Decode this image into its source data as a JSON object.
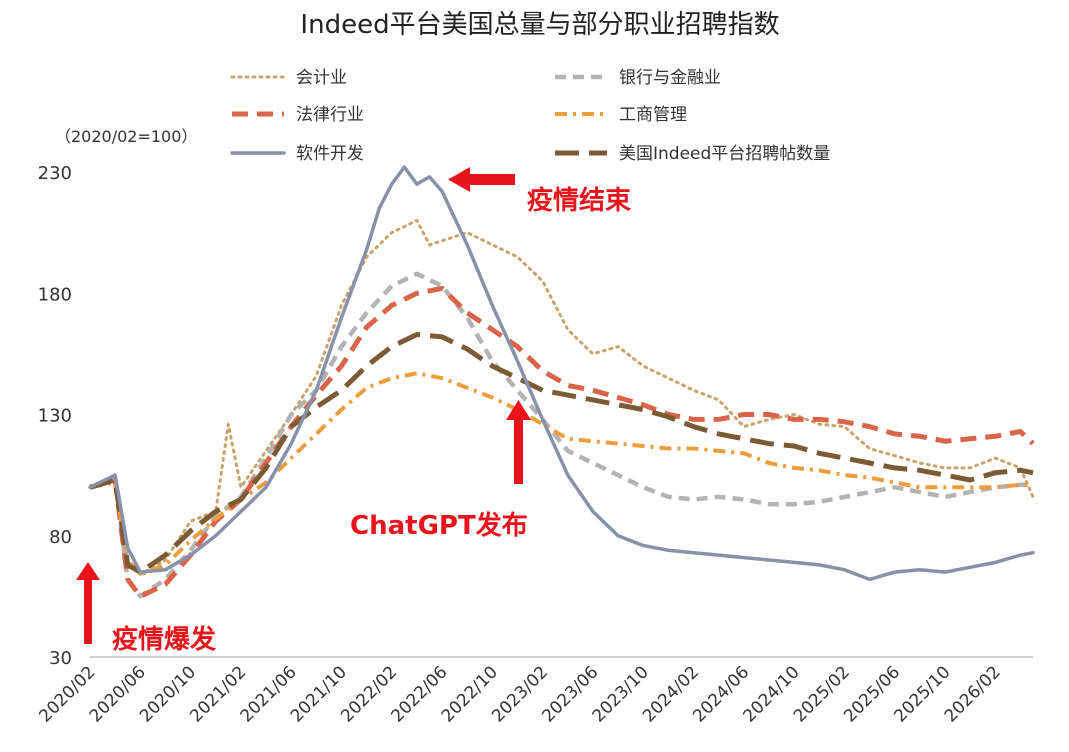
{
  "chart_data": {
    "type": "line",
    "title": "Indeed平台美国总量与部分职业招聘指数",
    "unit_label": "（2020/02=100）",
    "ylim": [
      30,
      230
    ],
    "yticks": [
      "230",
      "180",
      "130",
      "80",
      "30"
    ],
    "ytick_values": [
      230,
      180,
      130,
      80,
      30
    ],
    "x_tick_labels": [
      "2020/02",
      "2020/06",
      "2020/10",
      "2021/02",
      "2021/06",
      "2021/10",
      "2022/02",
      "2022/06",
      "2022/10",
      "2023/02",
      "2023/06",
      "2023/10",
      "2024/02",
      "2024/06",
      "2024/10",
      "2025/02",
      "2025/06",
      "2025/10",
      "2026/02"
    ],
    "x_start": "2020/02",
    "x_end": "2026/05",
    "grid": false,
    "legend_position": "top",
    "series": [
      {
        "name": "会计业",
        "color": "#c9a36b",
        "dash": "dotted",
        "points": [
          [
            "2020/02",
            100
          ],
          [
            "2020/04",
            103
          ],
          [
            "2020/05",
            70
          ],
          [
            "2020/06",
            64
          ],
          [
            "2020/08",
            70
          ],
          [
            "2020/10",
            86
          ],
          [
            "2020/12",
            90
          ],
          [
            "2021/01",
            126
          ],
          [
            "2021/02",
            100
          ],
          [
            "2021/04",
            115
          ],
          [
            "2021/06",
            130
          ],
          [
            "2021/08",
            146
          ],
          [
            "2021/10",
            175
          ],
          [
            "2021/12",
            195
          ],
          [
            "2022/02",
            205
          ],
          [
            "2022/04",
            210
          ],
          [
            "2022/05",
            200
          ],
          [
            "2022/08",
            205
          ],
          [
            "2022/10",
            200
          ],
          [
            "2022/12",
            195
          ],
          [
            "2023/02",
            185
          ],
          [
            "2023/04",
            165
          ],
          [
            "2023/06",
            155
          ],
          [
            "2023/08",
            158
          ],
          [
            "2023/10",
            150
          ],
          [
            "2023/12",
            145
          ],
          [
            "2024/02",
            140
          ],
          [
            "2024/04",
            136
          ],
          [
            "2024/06",
            125
          ],
          [
            "2024/08",
            128
          ],
          [
            "2024/10",
            130
          ],
          [
            "2024/12",
            126
          ],
          [
            "2025/02",
            125
          ],
          [
            "2025/04",
            116
          ],
          [
            "2025/06",
            113
          ],
          [
            "2025/08",
            110
          ],
          [
            "2025/10",
            108
          ],
          [
            "2025/12",
            108
          ],
          [
            "2026/02",
            112
          ],
          [
            "2026/04",
            108
          ],
          [
            "2026/05",
            96
          ]
        ]
      },
      {
        "name": "银行与金融业",
        "color": "#b3b3b3",
        "dash": "dashed",
        "points": [
          [
            "2020/02",
            100
          ],
          [
            "2020/04",
            103
          ],
          [
            "2020/05",
            62
          ],
          [
            "2020/06",
            55
          ],
          [
            "2020/08",
            62
          ],
          [
            "2020/10",
            74
          ],
          [
            "2020/12",
            88
          ],
          [
            "2021/02",
            96
          ],
          [
            "2021/04",
            112
          ],
          [
            "2021/06",
            130
          ],
          [
            "2021/08",
            140
          ],
          [
            "2021/10",
            158
          ],
          [
            "2021/12",
            172
          ],
          [
            "2022/02",
            183
          ],
          [
            "2022/04",
            188
          ],
          [
            "2022/06",
            183
          ],
          [
            "2022/08",
            170
          ],
          [
            "2022/10",
            152
          ],
          [
            "2022/12",
            140
          ],
          [
            "2023/02",
            128
          ],
          [
            "2023/04",
            115
          ],
          [
            "2023/06",
            110
          ],
          [
            "2023/08",
            105
          ],
          [
            "2023/10",
            100
          ],
          [
            "2023/12",
            96
          ],
          [
            "2024/02",
            95
          ],
          [
            "2024/04",
            96
          ],
          [
            "2024/06",
            95
          ],
          [
            "2024/08",
            93
          ],
          [
            "2024/10",
            93
          ],
          [
            "2024/12",
            94
          ],
          [
            "2025/02",
            96
          ],
          [
            "2025/04",
            98
          ],
          [
            "2025/06",
            100
          ],
          [
            "2025/08",
            98
          ],
          [
            "2025/10",
            96
          ],
          [
            "2025/12",
            98
          ],
          [
            "2026/02",
            100
          ],
          [
            "2026/04",
            101
          ],
          [
            "2026/05",
            101
          ]
        ]
      },
      {
        "name": "法律行业",
        "color": "#d9644a",
        "dash": "longdash",
        "points": [
          [
            "2020/02",
            100
          ],
          [
            "2020/04",
            103
          ],
          [
            "2020/05",
            62
          ],
          [
            "2020/06",
            55
          ],
          [
            "2020/08",
            60
          ],
          [
            "2020/10",
            72
          ],
          [
            "2020/12",
            86
          ],
          [
            "2021/02",
            95
          ],
          [
            "2021/04",
            110
          ],
          [
            "2021/06",
            125
          ],
          [
            "2021/08",
            138
          ],
          [
            "2021/10",
            150
          ],
          [
            "2021/12",
            166
          ],
          [
            "2022/02",
            175
          ],
          [
            "2022/04",
            180
          ],
          [
            "2022/06",
            182
          ],
          [
            "2022/08",
            172
          ],
          [
            "2022/10",
            165
          ],
          [
            "2022/12",
            158
          ],
          [
            "2023/02",
            148
          ],
          [
            "2023/04",
            142
          ],
          [
            "2023/06",
            140
          ],
          [
            "2023/08",
            137
          ],
          [
            "2023/10",
            134
          ],
          [
            "2023/12",
            130
          ],
          [
            "2024/02",
            128
          ],
          [
            "2024/04",
            128
          ],
          [
            "2024/06",
            130
          ],
          [
            "2024/08",
            130
          ],
          [
            "2024/10",
            128
          ],
          [
            "2024/12",
            128
          ],
          [
            "2025/02",
            127
          ],
          [
            "2025/04",
            125
          ],
          [
            "2025/06",
            122
          ],
          [
            "2025/08",
            121
          ],
          [
            "2025/10",
            119
          ],
          [
            "2025/12",
            120
          ],
          [
            "2026/02",
            121
          ],
          [
            "2026/04",
            123
          ],
          [
            "2026/05",
            118
          ]
        ]
      },
      {
        "name": "工商管理",
        "color": "#ef9c3a",
        "dash": "dashdot",
        "points": [
          [
            "2020/02",
            100
          ],
          [
            "2020/04",
            102
          ],
          [
            "2020/05",
            70
          ],
          [
            "2020/06",
            64
          ],
          [
            "2020/08",
            68
          ],
          [
            "2020/10",
            78
          ],
          [
            "2020/12",
            87
          ],
          [
            "2021/02",
            95
          ],
          [
            "2021/04",
            102
          ],
          [
            "2021/06",
            112
          ],
          [
            "2021/08",
            122
          ],
          [
            "2021/10",
            132
          ],
          [
            "2021/12",
            141
          ],
          [
            "2022/02",
            145
          ],
          [
            "2022/04",
            147
          ],
          [
            "2022/06",
            145
          ],
          [
            "2022/08",
            141
          ],
          [
            "2022/10",
            137
          ],
          [
            "2022/12",
            132
          ],
          [
            "2023/02",
            126
          ],
          [
            "2023/04",
            120
          ],
          [
            "2023/06",
            119
          ],
          [
            "2023/08",
            118
          ],
          [
            "2023/10",
            117
          ],
          [
            "2023/12",
            116
          ],
          [
            "2024/02",
            116
          ],
          [
            "2024/04",
            115
          ],
          [
            "2024/06",
            114
          ],
          [
            "2024/08",
            110
          ],
          [
            "2024/10",
            108
          ],
          [
            "2024/12",
            107
          ],
          [
            "2025/02",
            105
          ],
          [
            "2025/04",
            104
          ],
          [
            "2025/06",
            102
          ],
          [
            "2025/08",
            100
          ],
          [
            "2025/10",
            100
          ],
          [
            "2025/12",
            100
          ],
          [
            "2026/02",
            100
          ],
          [
            "2026/04",
            101
          ],
          [
            "2026/05",
            101
          ]
        ]
      },
      {
        "name": "软件开发",
        "color": "#8891aa",
        "dash": "solid",
        "points": [
          [
            "2020/02",
            100
          ],
          [
            "2020/04",
            105
          ],
          [
            "2020/05",
            75
          ],
          [
            "2020/06",
            65
          ],
          [
            "2020/08",
            66
          ],
          [
            "2020/10",
            72
          ],
          [
            "2020/12",
            80
          ],
          [
            "2021/02",
            90
          ],
          [
            "2021/04",
            100
          ],
          [
            "2021/06",
            118
          ],
          [
            "2021/08",
            140
          ],
          [
            "2021/10",
            170
          ],
          [
            "2021/12",
            198
          ],
          [
            "2022/01",
            215
          ],
          [
            "2022/02",
            225
          ],
          [
            "2022/03",
            232
          ],
          [
            "2022/04",
            225
          ],
          [
            "2022/05",
            228
          ],
          [
            "2022/06",
            222
          ],
          [
            "2022/08",
            200
          ],
          [
            "2022/10",
            175
          ],
          [
            "2022/12",
            152
          ],
          [
            "2023/02",
            128
          ],
          [
            "2023/04",
            105
          ],
          [
            "2023/06",
            90
          ],
          [
            "2023/08",
            80
          ],
          [
            "2023/10",
            76
          ],
          [
            "2023/12",
            74
          ],
          [
            "2024/02",
            73
          ],
          [
            "2024/04",
            72
          ],
          [
            "2024/06",
            71
          ],
          [
            "2024/08",
            70
          ],
          [
            "2024/10",
            69
          ],
          [
            "2024/12",
            68
          ],
          [
            "2025/02",
            66
          ],
          [
            "2025/04",
            62
          ],
          [
            "2025/06",
            65
          ],
          [
            "2025/08",
            66
          ],
          [
            "2025/10",
            65
          ],
          [
            "2025/12",
            67
          ],
          [
            "2026/02",
            69
          ],
          [
            "2026/04",
            72
          ],
          [
            "2026/05",
            73
          ]
        ]
      },
      {
        "name": "美国Indeed平台招聘帖数量",
        "color": "#7b5a34",
        "dash": "dashed-thick",
        "points": [
          [
            "2020/02",
            100
          ],
          [
            "2020/04",
            103
          ],
          [
            "2020/05",
            68
          ],
          [
            "2020/06",
            65
          ],
          [
            "2020/08",
            72
          ],
          [
            "2020/10",
            82
          ],
          [
            "2020/12",
            90
          ],
          [
            "2021/02",
            95
          ],
          [
            "2021/04",
            108
          ],
          [
            "2021/06",
            125
          ],
          [
            "2021/08",
            133
          ],
          [
            "2021/10",
            140
          ],
          [
            "2021/12",
            150
          ],
          [
            "2022/02",
            158
          ],
          [
            "2022/04",
            163
          ],
          [
            "2022/06",
            162
          ],
          [
            "2022/08",
            157
          ],
          [
            "2022/10",
            150
          ],
          [
            "2022/12",
            145
          ],
          [
            "2023/02",
            140
          ],
          [
            "2023/04",
            138
          ],
          [
            "2023/06",
            136
          ],
          [
            "2023/08",
            134
          ],
          [
            "2023/10",
            132
          ],
          [
            "2023/12",
            129
          ],
          [
            "2024/02",
            125
          ],
          [
            "2024/04",
            122
          ],
          [
            "2024/06",
            120
          ],
          [
            "2024/08",
            118
          ],
          [
            "2024/10",
            117
          ],
          [
            "2024/12",
            114
          ],
          [
            "2025/02",
            112
          ],
          [
            "2025/04",
            110
          ],
          [
            "2025/06",
            108
          ],
          [
            "2025/08",
            107
          ],
          [
            "2025/10",
            105
          ],
          [
            "2025/12",
            103
          ],
          [
            "2026/02",
            106
          ],
          [
            "2026/04",
            107
          ],
          [
            "2026/05",
            106
          ]
        ]
      }
    ],
    "annotations": [
      {
        "text": "疫情爆发",
        "x": "2020/02"
      },
      {
        "text": "疫情结束",
        "x": "2022/06"
      },
      {
        "text": "ChatGPT发布",
        "x": "2022/12"
      }
    ]
  }
}
